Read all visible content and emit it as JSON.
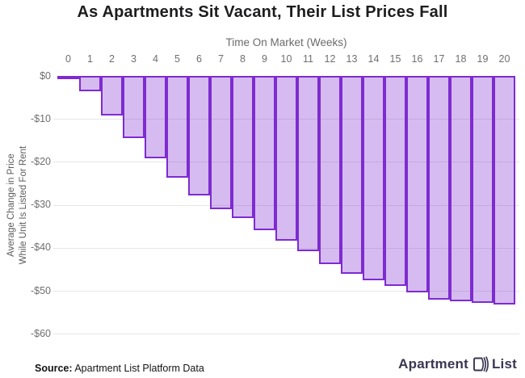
{
  "title": "As Apartments Sit Vacant, Their List Prices Fall",
  "footer": {
    "source_label": "Source:",
    "source_text": " Apartment List Platform Data"
  },
  "logo": {
    "left": "Apartment",
    "right": "List"
  },
  "colors": {
    "bar_fill": "#d3b7ef",
    "bar_border": "#7e2bd1",
    "gridline": "#e6e6e6",
    "title_text": "#1d1d1f",
    "axis_text": "#6f6f6f",
    "logo_text": "#3a3652",
    "logo_accent": "#8b5cf6"
  },
  "chart_data": {
    "type": "bar",
    "title": "As Apartments Sit Vacant, Their List Prices Fall",
    "xlabel": "Time On Market (Weeks)",
    "ylabel_lines": [
      "Average Change in Price",
      "While Unit Is Listed For Rent"
    ],
    "categories": [
      "0",
      "1",
      "2",
      "3",
      "4",
      "5",
      "6",
      "7",
      "8",
      "9",
      "10",
      "11",
      "12",
      "13",
      "14",
      "15",
      "16",
      "17",
      "18",
      "19",
      "20"
    ],
    "values": [
      -0.6,
      -3.5,
      -9.2,
      -14.5,
      -19.2,
      -23.7,
      -27.8,
      -31.0,
      -33.0,
      -35.8,
      -38.3,
      -40.8,
      -43.7,
      -46.0,
      -47.5,
      -48.9,
      -50.4,
      -52.0,
      -52.5,
      -52.9,
      -53.2
    ],
    "y_ticks": [
      "$0",
      "-$10",
      "-$20",
      "-$30",
      "-$40",
      "-$50",
      "-$60"
    ],
    "ylim": [
      -60,
      0
    ],
    "grid": true,
    "legend": "none",
    "bars_touching": true
  }
}
